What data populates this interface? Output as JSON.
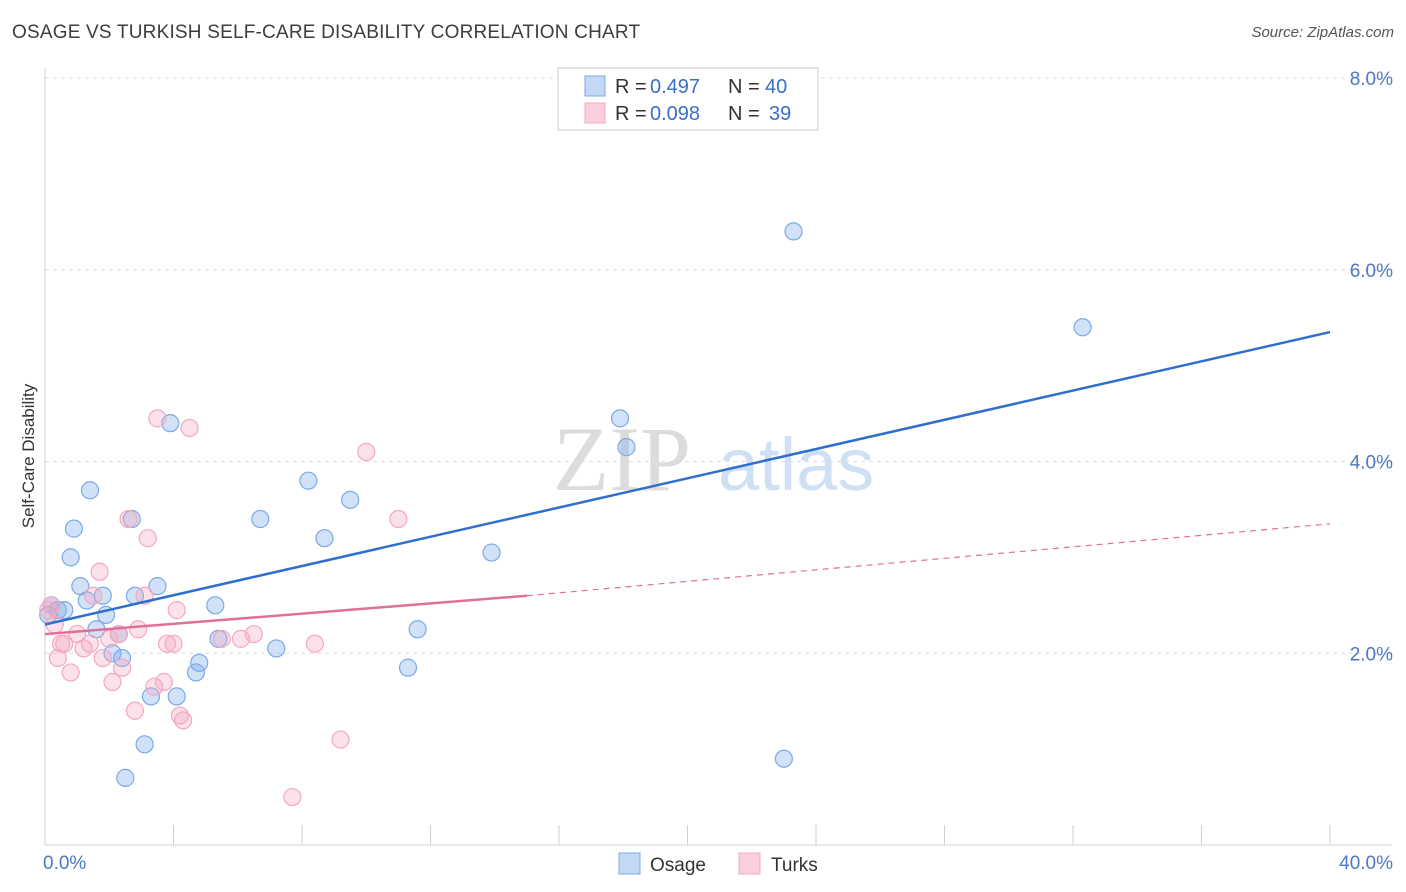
{
  "header": {
    "title": "OSAGE VS TURKISH SELF-CARE DISABILITY CORRELATION CHART",
    "source": "Source: ZipAtlas.com"
  },
  "watermark": "ZIPatlas",
  "chart_data": {
    "type": "scatter",
    "title": "OSAGE VS TURKISH SELF-CARE DISABILITY CORRELATION CHART",
    "ylabel": "Self-Care Disability",
    "xlabel": "",
    "xlim": [
      0,
      40
    ],
    "ylim": [
      0,
      8
    ],
    "x_tick_labels": [
      "0.0%",
      "40.0%"
    ],
    "y_tick_labels": [
      "2.0%",
      "4.0%",
      "6.0%",
      "8.0%"
    ],
    "y_ticks": [
      2,
      4,
      6,
      8
    ],
    "legend": [
      {
        "label_r": "R = ",
        "r": "0.497",
        "label_n": "N = ",
        "n": "40"
      },
      {
        "label_r": "R = ",
        "r": "0.098",
        "label_n": "N = ",
        "n": "39"
      }
    ],
    "series": [
      {
        "name": "Osage",
        "color": "#7aaae8",
        "line_color": "#2f6fcc",
        "trend": {
          "x0": 0,
          "y0": 2.3,
          "x1": 40,
          "y1": 5.35
        },
        "points": [
          [
            0.2,
            2.5
          ],
          [
            0.4,
            2.45
          ],
          [
            0.6,
            2.45
          ],
          [
            0.8,
            3.0
          ],
          [
            0.9,
            3.3
          ],
          [
            1.1,
            2.7
          ],
          [
            1.3,
            2.55
          ],
          [
            1.4,
            3.7
          ],
          [
            1.6,
            2.25
          ],
          [
            1.8,
            2.6
          ],
          [
            1.9,
            2.4
          ],
          [
            2.1,
            2.0
          ],
          [
            2.3,
            2.2
          ],
          [
            2.4,
            1.95
          ],
          [
            2.5,
            0.7
          ],
          [
            2.7,
            3.4
          ],
          [
            2.8,
            2.6
          ],
          [
            3.1,
            1.05
          ],
          [
            3.3,
            1.55
          ],
          [
            3.5,
            2.7
          ],
          [
            3.9,
            4.4
          ],
          [
            4.1,
            1.55
          ],
          [
            4.7,
            1.8
          ],
          [
            4.8,
            1.9
          ],
          [
            5.3,
            2.5
          ],
          [
            5.4,
            2.15
          ],
          [
            6.7,
            3.4
          ],
          [
            7.2,
            2.05
          ],
          [
            8.2,
            3.8
          ],
          [
            8.7,
            3.2
          ],
          [
            9.5,
            3.6
          ],
          [
            11.3,
            1.85
          ],
          [
            11.6,
            2.25
          ],
          [
            13.9,
            3.05
          ],
          [
            17.9,
            4.45
          ],
          [
            18.1,
            4.15
          ],
          [
            23.0,
            0.9
          ],
          [
            23.3,
            6.4
          ],
          [
            32.3,
            5.4
          ],
          [
            0.1,
            2.4
          ]
        ]
      },
      {
        "name": "Turks",
        "color": "#f4a8c0",
        "line_color": "#e0709a",
        "trend": {
          "x0": 0,
          "y0": 2.2,
          "x1": 15,
          "y1": 2.6
        },
        "trend_dashed": {
          "x0": 15,
          "y0": 2.6,
          "x1": 40,
          "y1": 3.35
        },
        "points": [
          [
            0.1,
            2.45
          ],
          [
            0.2,
            2.5
          ],
          [
            0.3,
            2.3
          ],
          [
            0.4,
            1.95
          ],
          [
            0.5,
            2.1
          ],
          [
            0.6,
            2.1
          ],
          [
            0.8,
            1.8
          ],
          [
            1.0,
            2.2
          ],
          [
            1.2,
            2.05
          ],
          [
            1.4,
            2.1
          ],
          [
            1.5,
            2.6
          ],
          [
            1.7,
            2.85
          ],
          [
            1.8,
            1.95
          ],
          [
            2.0,
            2.15
          ],
          [
            2.1,
            1.7
          ],
          [
            2.3,
            2.2
          ],
          [
            2.4,
            1.85
          ],
          [
            2.6,
            3.4
          ],
          [
            2.8,
            1.4
          ],
          [
            2.9,
            2.25
          ],
          [
            3.1,
            2.6
          ],
          [
            3.2,
            3.2
          ],
          [
            3.4,
            1.65
          ],
          [
            3.5,
            4.45
          ],
          [
            3.7,
            1.7
          ],
          [
            3.8,
            2.1
          ],
          [
            4.0,
            2.1
          ],
          [
            4.1,
            2.45
          ],
          [
            4.2,
            1.35
          ],
          [
            4.3,
            1.3
          ],
          [
            4.5,
            4.35
          ],
          [
            5.5,
            2.15
          ],
          [
            6.1,
            2.15
          ],
          [
            6.5,
            2.2
          ],
          [
            7.7,
            0.5
          ],
          [
            8.4,
            2.1
          ],
          [
            9.2,
            1.1
          ],
          [
            10.0,
            4.1
          ],
          [
            11.0,
            3.4
          ]
        ]
      }
    ]
  }
}
